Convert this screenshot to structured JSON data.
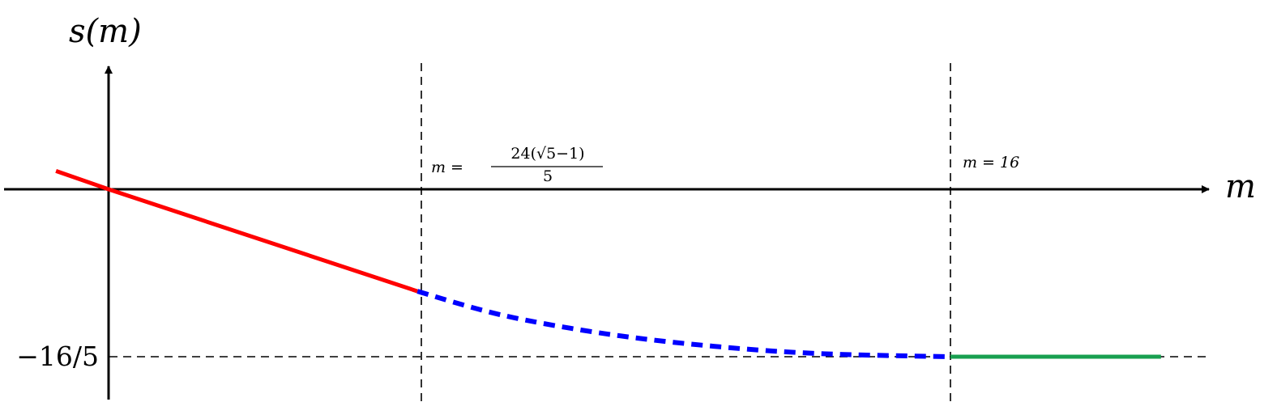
{
  "chart_data": {
    "type": "line",
    "title": "",
    "xlabel": "m",
    "ylabel": "s(m)",
    "y_tick_label": "−16/5",
    "vlines": [
      {
        "m_approx": 5.87,
        "label_prefix": "m =",
        "label_numerator": "24(√5−1)",
        "label_denominator": "5"
      },
      {
        "m_approx": 16,
        "label": "m = 16"
      }
    ],
    "hline": {
      "y": -3.2,
      "label": "−16/5"
    },
    "series": [
      {
        "style": "solid",
        "color": "#ff0000",
        "points": [
          [
            -1.0,
            0.35
          ],
          [
            0,
            0
          ],
          [
            5.87,
            -1.95
          ]
        ]
      },
      {
        "style": "dashed",
        "color": "#0000ff",
        "points": [
          [
            5.87,
            -1.95
          ],
          [
            7.5,
            -2.41
          ],
          [
            9.5,
            -2.77
          ],
          [
            11.5,
            -3.0
          ],
          [
            13.5,
            -3.14
          ],
          [
            16,
            -3.2
          ]
        ]
      },
      {
        "style": "solid",
        "color": "#18a050",
        "points": [
          [
            16,
            -3.2
          ],
          [
            20,
            -3.2
          ]
        ]
      }
    ],
    "xlim": [
      -2.0,
      21.5
    ],
    "ylim": [
      -4.0,
      2.3
    ],
    "grid": false,
    "legend": "none"
  }
}
